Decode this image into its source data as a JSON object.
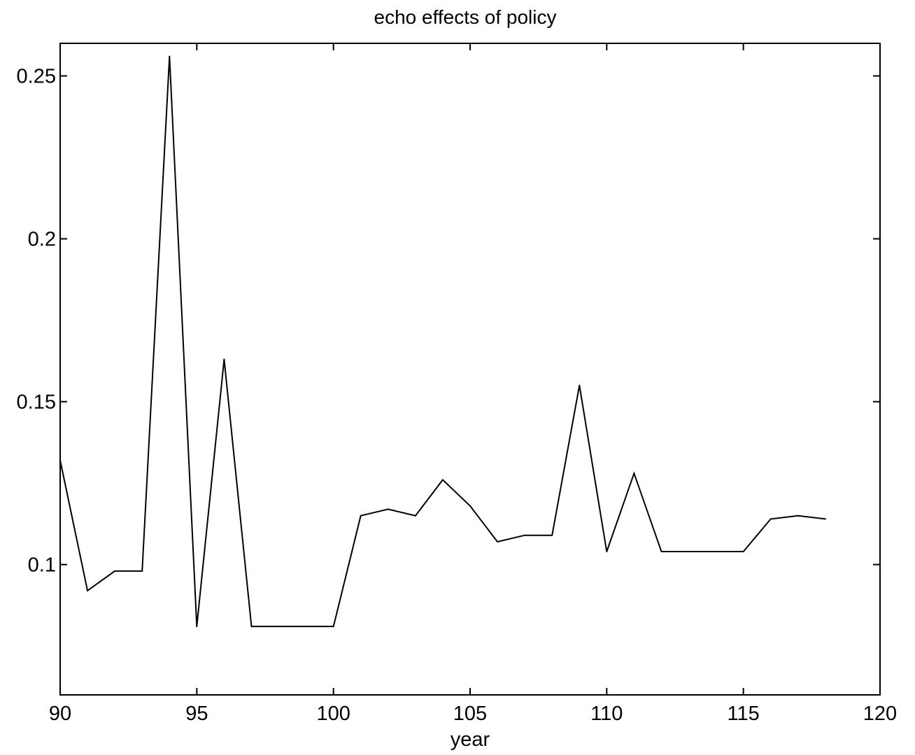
{
  "chart_data": {
    "type": "line",
    "title": "echo effects of policy",
    "xlabel": "year",
    "ylabel": "",
    "xlim": [
      90,
      120
    ],
    "ylim": [
      0.06,
      0.26
    ],
    "xticks": [
      90,
      95,
      100,
      105,
      110,
      115,
      120
    ],
    "xtick_labels": [
      "90",
      "95",
      "100",
      "105",
      "110",
      "115",
      "120"
    ],
    "yticks": [
      0.1,
      0.15,
      0.2,
      0.25
    ],
    "ytick_labels": [
      "0.1",
      "0.15",
      "0.2",
      "0.25"
    ],
    "grid": false,
    "line_color": "#000000",
    "x": [
      90,
      91,
      92,
      93,
      94,
      95,
      96,
      97,
      98,
      99,
      100,
      101,
      102,
      103,
      104,
      105,
      106,
      107,
      108,
      109,
      110,
      111,
      112,
      113,
      114,
      115,
      116,
      117,
      118
    ],
    "y": [
      0.132,
      0.092,
      0.098,
      0.098,
      0.256,
      0.081,
      0.163,
      0.081,
      0.081,
      0.081,
      0.081,
      0.115,
      0.117,
      0.115,
      0.126,
      0.118,
      0.107,
      0.109,
      0.109,
      0.155,
      0.104,
      0.128,
      0.104,
      0.104,
      0.104,
      0.104,
      0.114,
      0.115,
      0.114
    ]
  }
}
